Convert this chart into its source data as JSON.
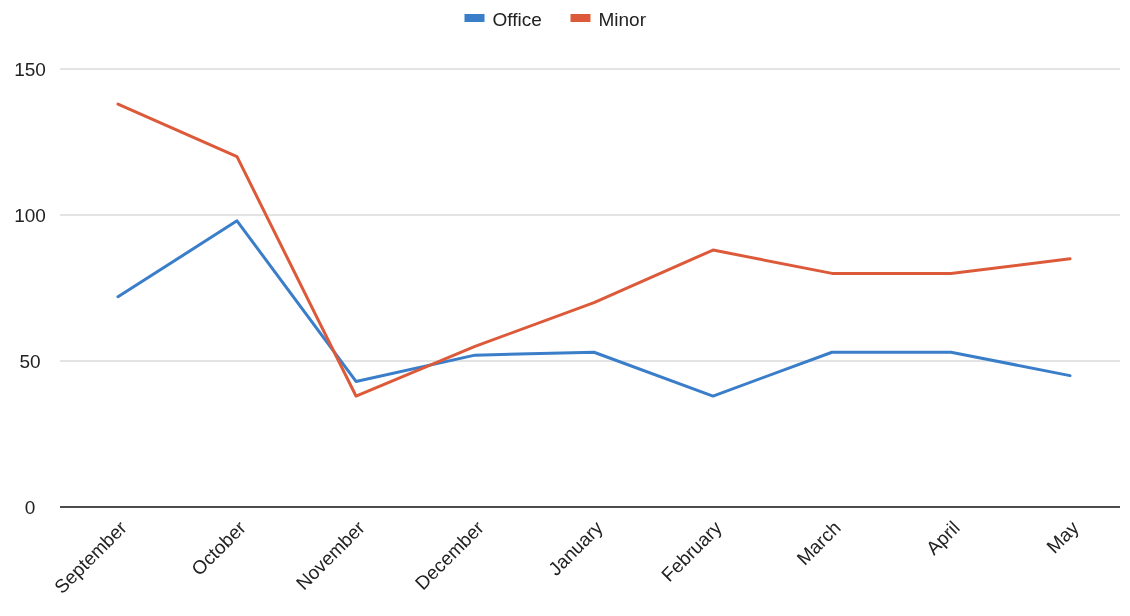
{
  "chart_data": {
    "type": "line",
    "categories": [
      "September",
      "October",
      "November",
      "December",
      "January",
      "February",
      "March",
      "April",
      "May"
    ],
    "series": [
      {
        "name": "Office",
        "color": "#3a7dc9",
        "values": [
          72,
          98,
          43,
          52,
          53,
          38,
          53,
          53,
          45
        ]
      },
      {
        "name": "Minor",
        "color": "#dc5a3a",
        "values": [
          138,
          120,
          38,
          55,
          70,
          88,
          80,
          80,
          85
        ]
      }
    ],
    "ylim": [
      0,
      150
    ],
    "yticks": [
      0,
      50,
      100,
      150
    ],
    "grid": "y",
    "legend": "top",
    "marker": "none",
    "line_style": "solid"
  }
}
